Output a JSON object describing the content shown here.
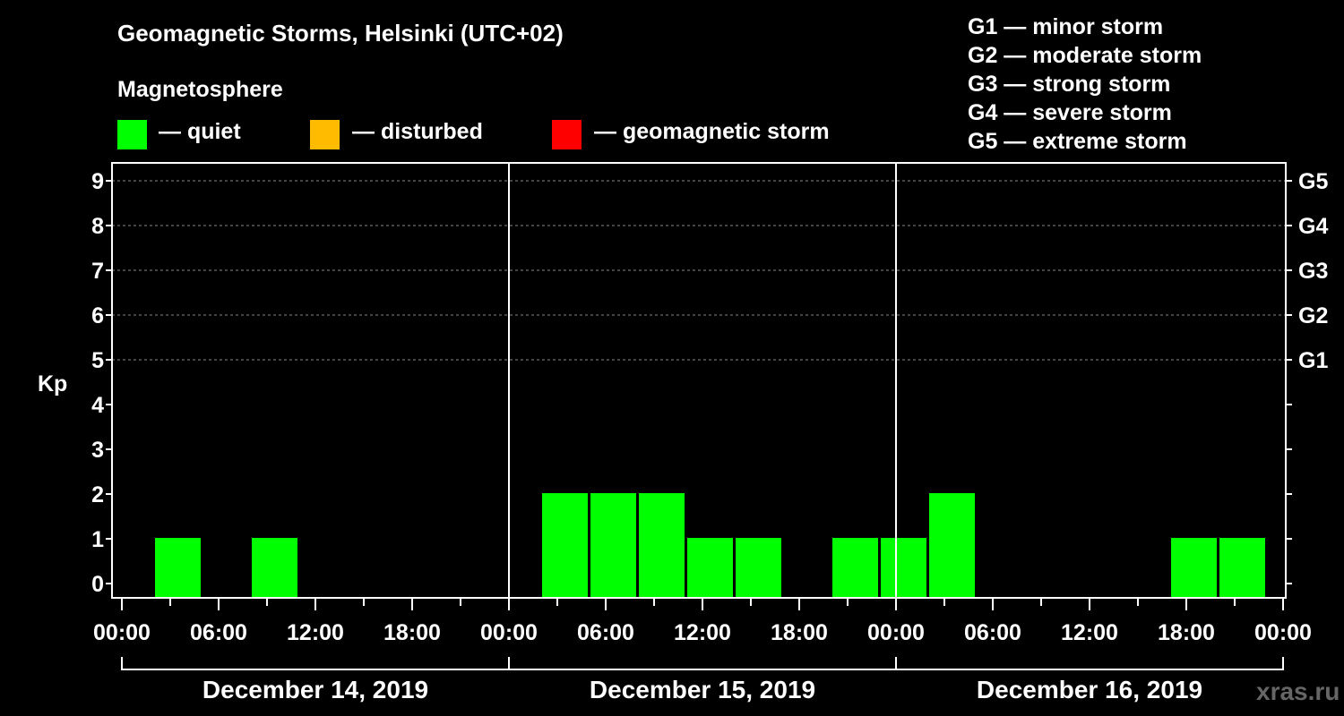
{
  "chart_data": {
    "type": "bar",
    "title": "Geomagnetic Storms, Helsinki (UTC+02)",
    "subtitle": "Magnetosphere",
    "ylabel": "Kp",
    "ylim": [
      0,
      9
    ],
    "yticks": [
      "0",
      "1",
      "2",
      "3",
      "4",
      "5",
      "6",
      "7",
      "8",
      "9"
    ],
    "right_ticks": [
      {
        "kp": 5,
        "label": "G1"
      },
      {
        "kp": 6,
        "label": "G2"
      },
      {
        "kp": 7,
        "label": "G3"
      },
      {
        "kp": 8,
        "label": "G4"
      },
      {
        "kp": 9,
        "label": "G5"
      }
    ],
    "xlim_hours": [
      0,
      72
    ],
    "xticks": [
      {
        "hour": 0,
        "label": "00:00"
      },
      {
        "hour": 6,
        "label": "06:00"
      },
      {
        "hour": 12,
        "label": "12:00"
      },
      {
        "hour": 18,
        "label": "18:00"
      },
      {
        "hour": 24,
        "label": "00:00"
      },
      {
        "hour": 30,
        "label": "06:00"
      },
      {
        "hour": 36,
        "label": "12:00"
      },
      {
        "hour": 42,
        "label": "18:00"
      },
      {
        "hour": 48,
        "label": "00:00"
      },
      {
        "hour": 54,
        "label": "06:00"
      },
      {
        "hour": 60,
        "label": "12:00"
      },
      {
        "hour": 66,
        "label": "18:00"
      },
      {
        "hour": 72,
        "label": "00:00"
      }
    ],
    "days": [
      {
        "label": "December 14, 2019",
        "start_hour": 0,
        "end_hour": 24
      },
      {
        "label": "December 15, 2019",
        "start_hour": 24,
        "end_hour": 48
      },
      {
        "label": "December 16, 2019",
        "start_hour": 48,
        "end_hour": 72
      }
    ],
    "bar_start_hours": [
      2,
      5,
      8,
      11,
      14,
      17,
      20,
      23,
      26,
      29,
      32,
      35,
      38,
      41,
      44,
      47,
      50,
      53,
      56,
      59,
      62,
      65,
      68,
      71
    ],
    "bar_width_hours": 3,
    "values": [
      1,
      0,
      1,
      0,
      0,
      0,
      0,
      0,
      2,
      2,
      2,
      1,
      1,
      0,
      1,
      1,
      2,
      0,
      0,
      0,
      0,
      1,
      1,
      0
    ],
    "legend": [
      {
        "label": "— quiet",
        "color": "#00ff00"
      },
      {
        "label": "— disturbed",
        "color": "#ffbb00"
      },
      {
        "label": "— geomagnetic storm",
        "color": "#ff0000"
      }
    ],
    "storm_levels": [
      "G1 — minor storm",
      "G2 — moderate storm",
      "G3 — strong storm",
      "G4 — severe storm",
      "G5 — extreme storm"
    ],
    "colors": {
      "quiet": "#00ff00",
      "disturbed": "#ffbb00",
      "storm": "#ff0000"
    }
  },
  "watermark": "xras.ru"
}
